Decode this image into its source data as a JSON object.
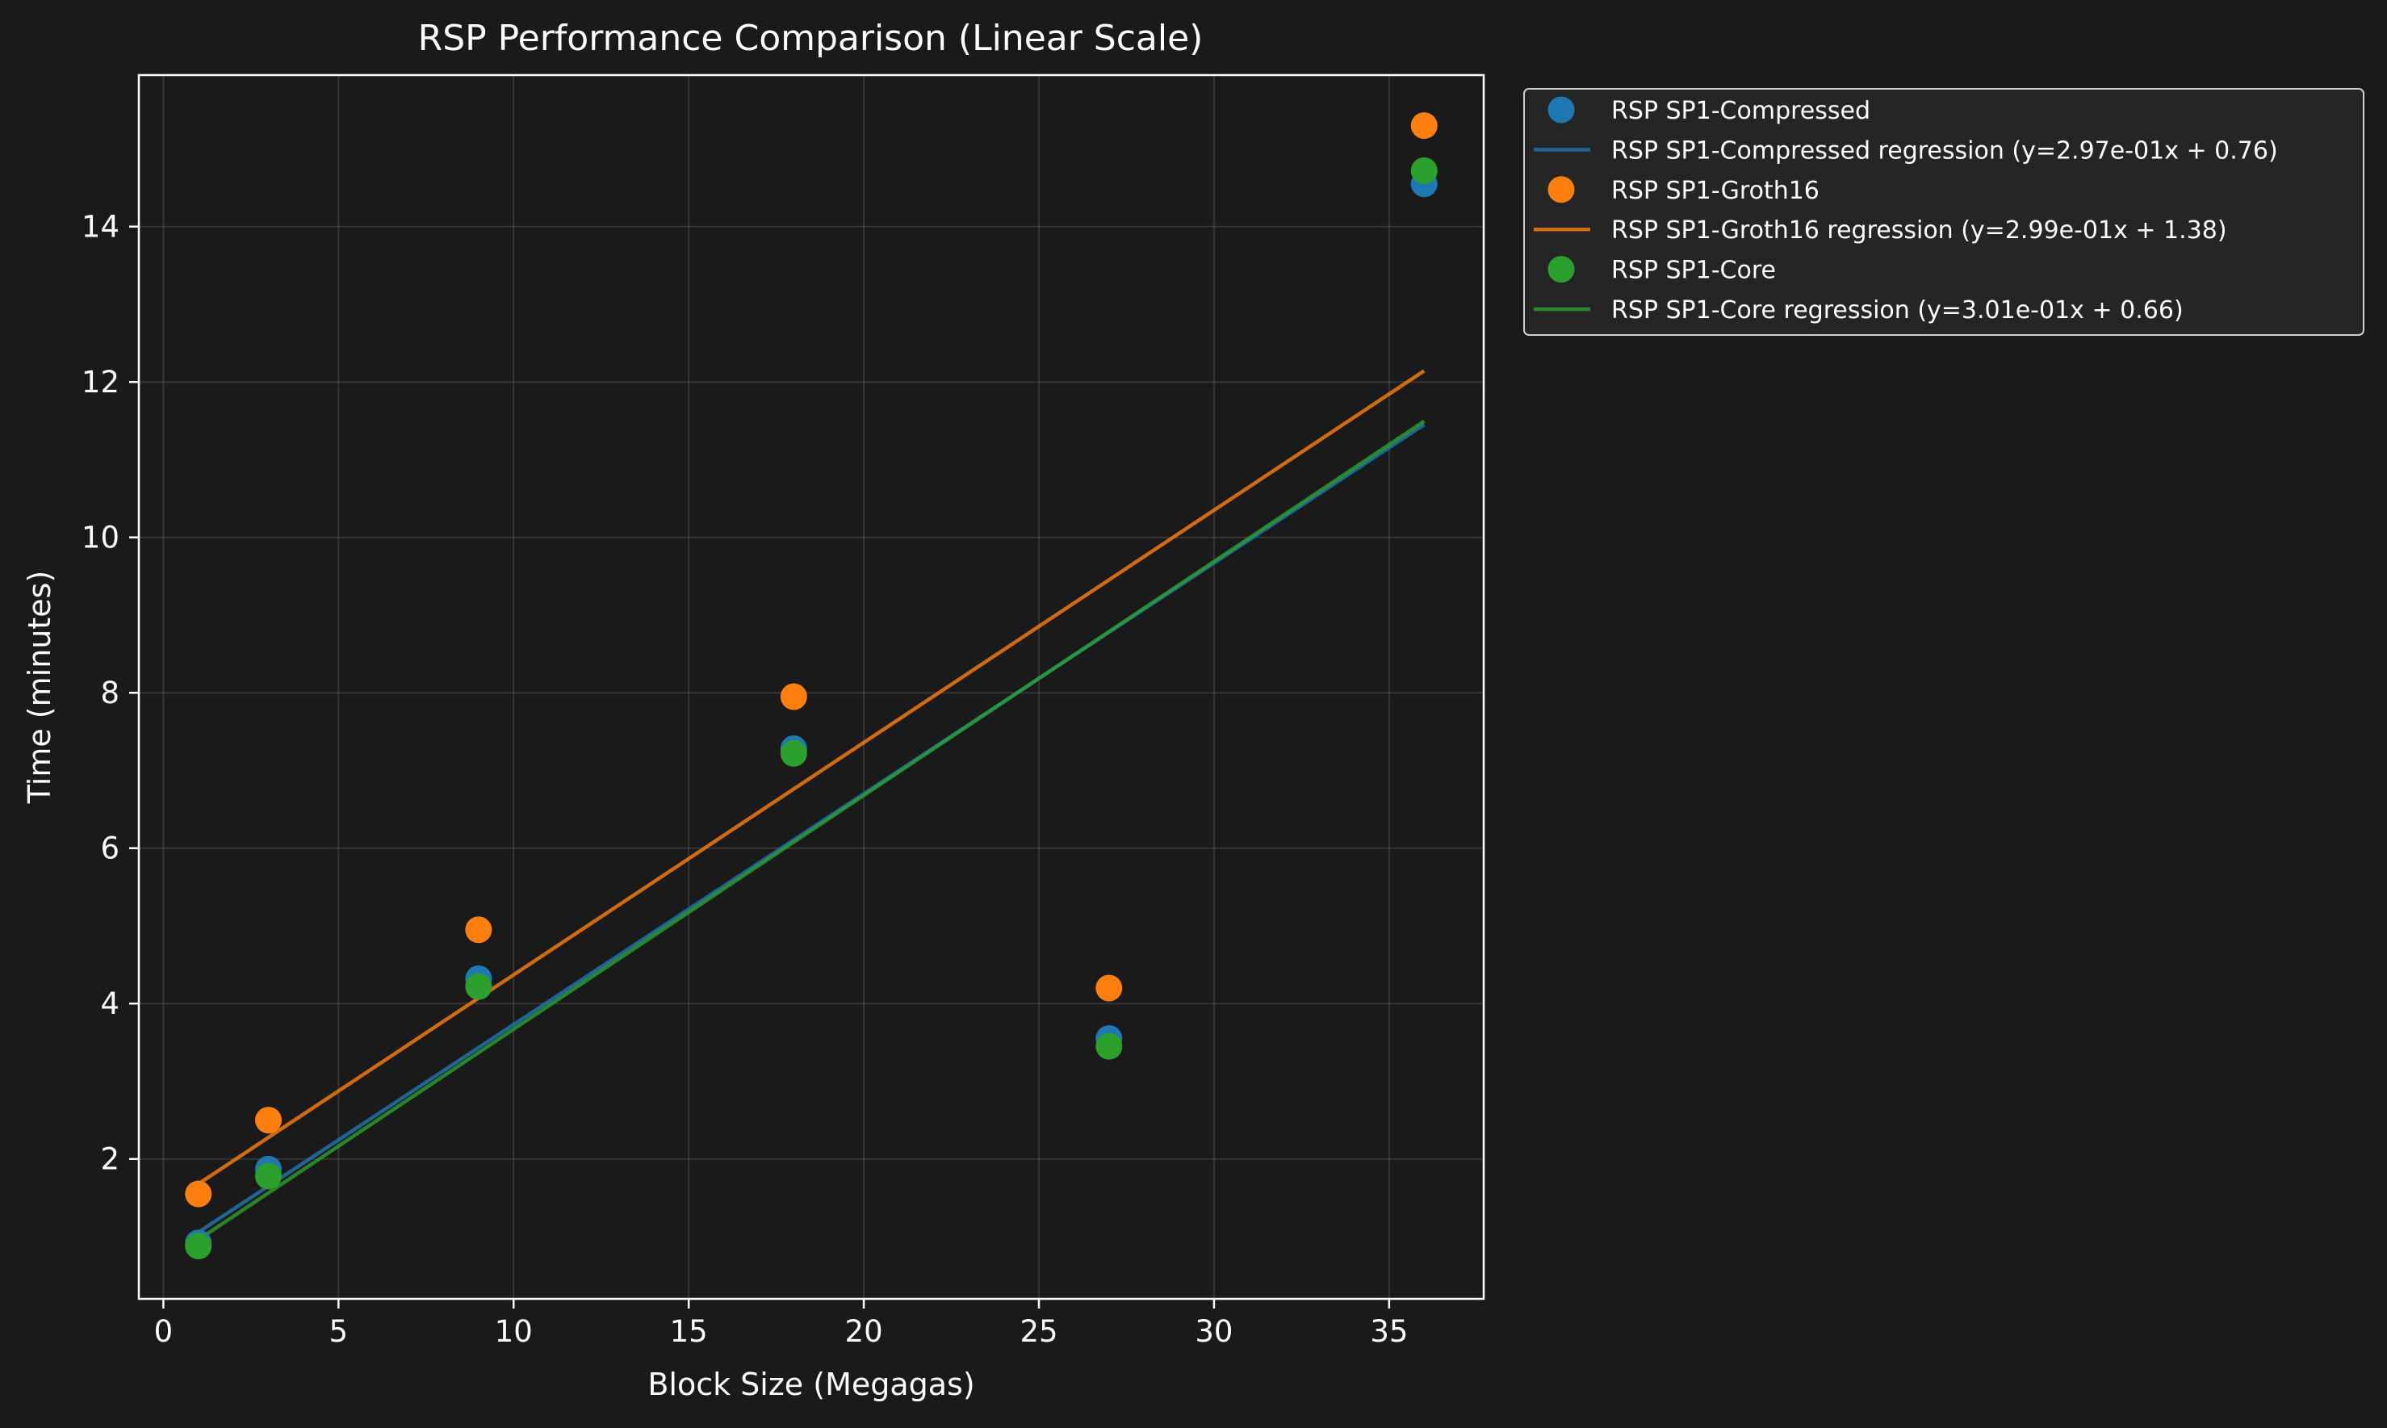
{
  "chart_data": {
    "type": "scatter",
    "title": "RSP Performance Comparison (Linear Scale)",
    "xlabel": "Block Size (Megagas)",
    "ylabel": "Time (minutes)",
    "xlim": [
      -0.7,
      37.7
    ],
    "ylim": [
      0.2,
      15.95
    ],
    "xticks": [
      0,
      5,
      10,
      15,
      20,
      25,
      30,
      35
    ],
    "yticks": [
      2,
      4,
      6,
      8,
      10,
      12,
      14
    ],
    "grid": true,
    "legend_position": "outside-top-right",
    "x": [
      1,
      3,
      9,
      18,
      27,
      36
    ],
    "series": [
      {
        "name": "RSP SP1-Compressed",
        "color": "#1f77b4",
        "values": [
          0.92,
          1.87,
          4.32,
          7.28,
          3.55,
          14.55
        ],
        "regression": {
          "label": "RSP SP1-Compressed regression (y=2.97e-01x + 0.76)",
          "slope": 0.297,
          "intercept": 0.76,
          "x_range": [
            1,
            36
          ]
        }
      },
      {
        "name": "RSP SP1-Groth16",
        "color": "#ff7f0e",
        "values": [
          1.55,
          2.5,
          4.95,
          7.95,
          4.2,
          15.3
        ],
        "regression": {
          "label": "RSP SP1-Groth16 regression (y=2.99e-01x + 1.38)",
          "slope": 0.299,
          "intercept": 1.38,
          "x_range": [
            1,
            36
          ]
        }
      },
      {
        "name": "RSP SP1-Core",
        "color": "#2ca02c",
        "values": [
          0.88,
          1.78,
          4.22,
          7.22,
          3.45,
          14.72
        ],
        "regression": {
          "label": "RSP SP1-Core regression (y=3.01e-01x + 0.66)",
          "slope": 0.301,
          "intercept": 0.66,
          "x_range": [
            1,
            36
          ]
        }
      }
    ]
  }
}
